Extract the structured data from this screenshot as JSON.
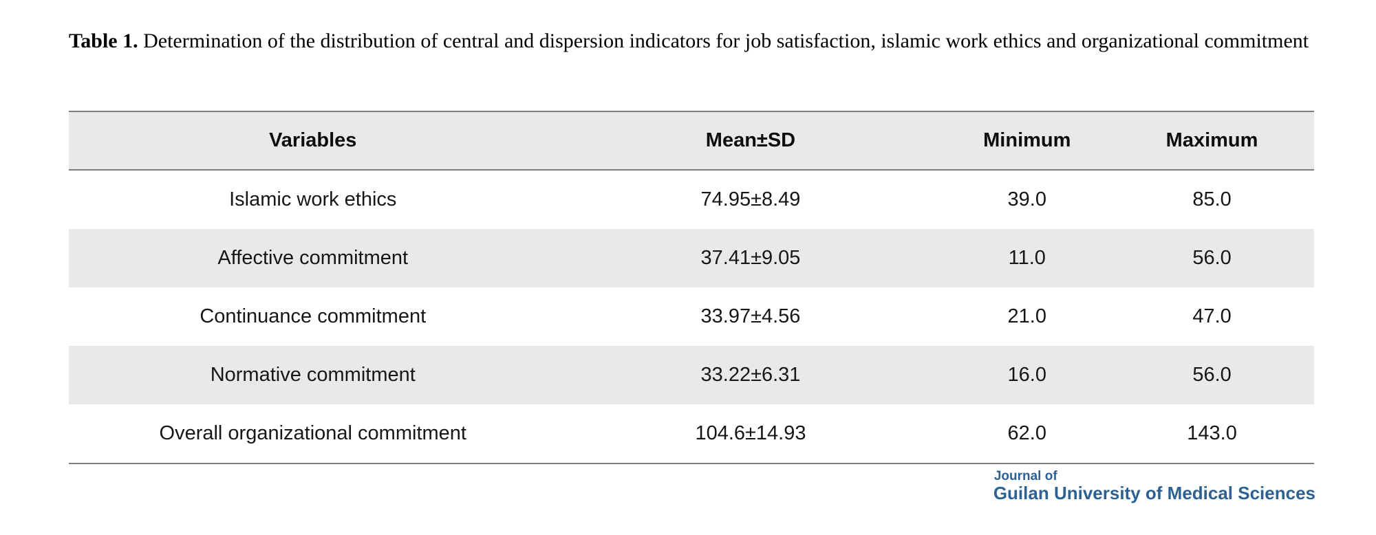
{
  "document": {
    "table_label": "Table 1.",
    "caption": "Determination of the distribution of central and dispersion indicators for job satisfaction, islamic work ethics and organizational commitment"
  },
  "table": {
    "columns": [
      "Variables",
      "Mean±SD",
      "Minimum",
      "Maximum"
    ],
    "rows": [
      {
        "variable": "Islamic work ethics",
        "mean_sd": "74.95±8.49",
        "minimum": "39.0",
        "maximum": "85.0"
      },
      {
        "variable": "Affective commitment",
        "mean_sd": "37.41±9.05",
        "minimum": "11.0",
        "maximum": "56.0"
      },
      {
        "variable": "Continuance commitment",
        "mean_sd": "33.97±4.56",
        "minimum": "21.0",
        "maximum": "47.0"
      },
      {
        "variable": "Normative commitment",
        "mean_sd": "33.22±6.31",
        "minimum": "16.0",
        "maximum": "56.0"
      },
      {
        "variable": "Overall organizational commitment",
        "mean_sd": "104.6±14.93",
        "minimum": "62.0",
        "maximum": "143.0"
      }
    ]
  },
  "journal_logo": {
    "line1": "Journal of",
    "line2": "Guilan University of Medical Sciences"
  },
  "colors": {
    "logo_blue": "#2c6191",
    "row_shade": "#e9e9eb",
    "rule_gray": "#7d7d7d"
  }
}
